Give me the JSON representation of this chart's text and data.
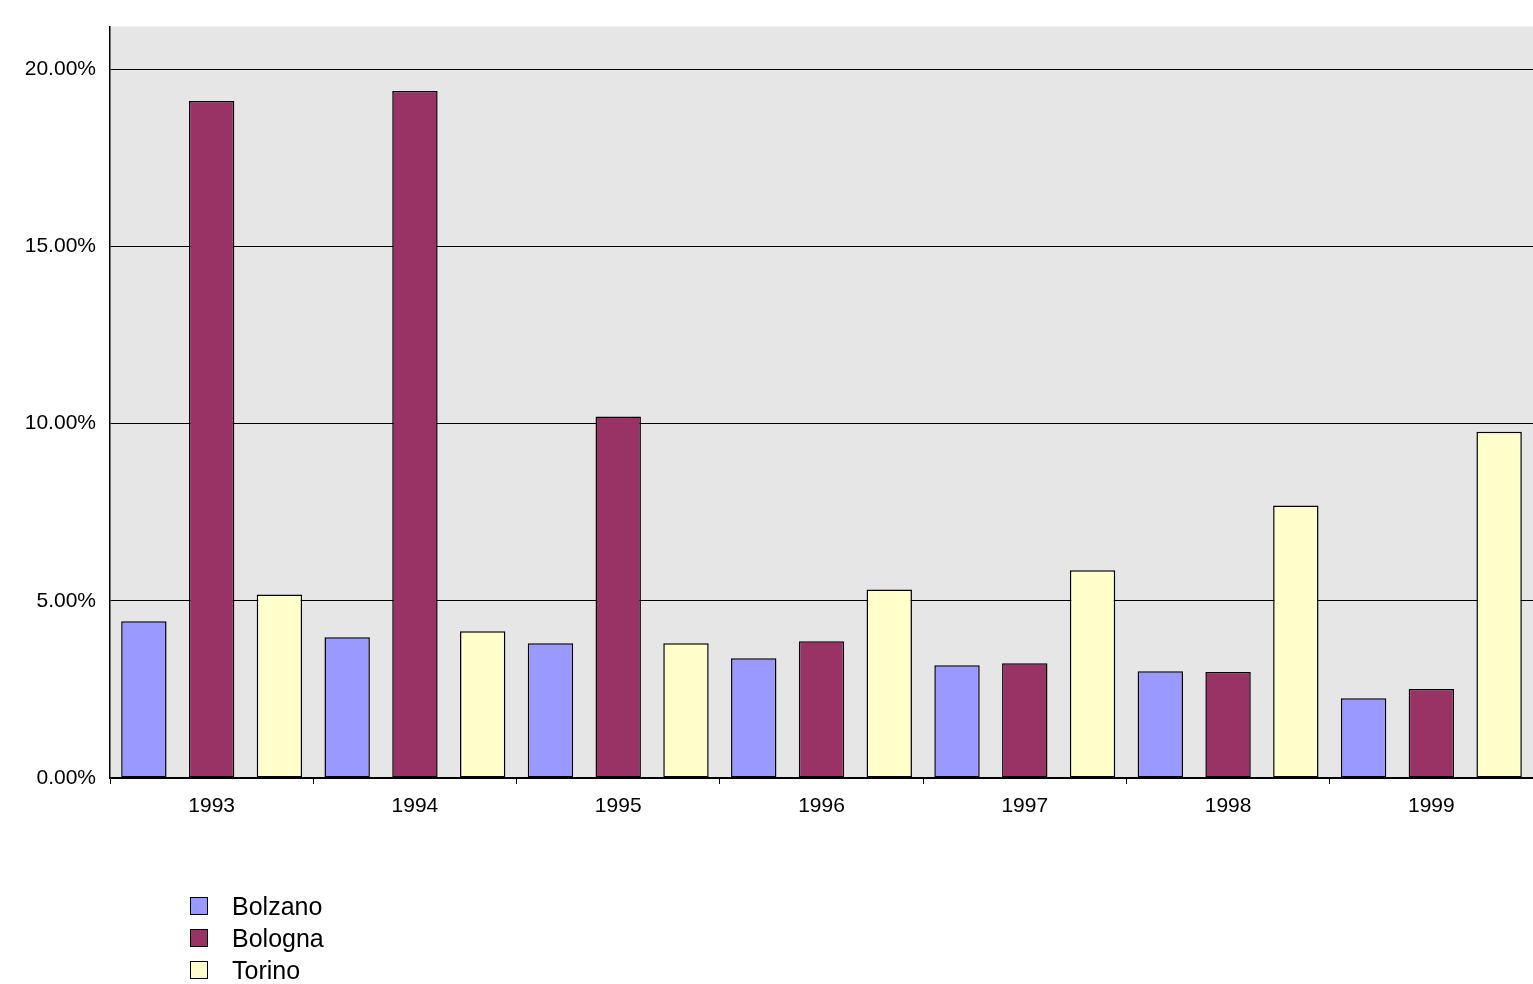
{
  "chart_data": {
    "type": "bar",
    "categories": [
      "1993",
      "1994",
      "1995",
      "1996",
      "1997",
      "1998",
      "1999"
    ],
    "series": [
      {
        "name": "Bolzano",
        "color": "#9999ff",
        "values": [
          4.42,
          3.97,
          3.8,
          3.38,
          3.18,
          3.01,
          2.25
        ]
      },
      {
        "name": "Bologna",
        "color": "#993366",
        "values": [
          19.1,
          19.38,
          10.2,
          3.86,
          3.24,
          2.99,
          2.51
        ]
      },
      {
        "name": "Torino",
        "color": "#ffffcc",
        "values": [
          5.18,
          4.14,
          3.8,
          5.32,
          5.86,
          7.69,
          9.77
        ]
      }
    ],
    "ylim": [
      0,
      21.2
    ],
    "yticks": [
      {
        "value": 0,
        "label": "0.00%"
      },
      {
        "value": 5,
        "label": "5.00%"
      },
      {
        "value": 10,
        "label": "10.00%"
      },
      {
        "value": 15,
        "label": "15.00%"
      },
      {
        "value": 20,
        "label": "20.00%"
      }
    ],
    "grid": "y",
    "legend": "bottom left"
  }
}
